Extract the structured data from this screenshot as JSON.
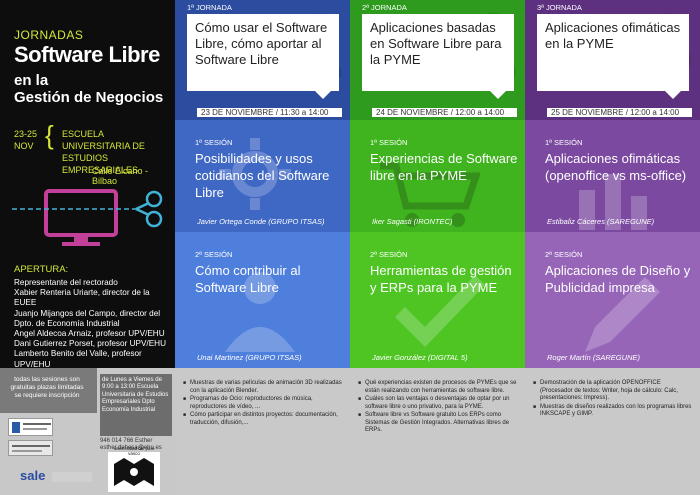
{
  "left": {
    "jornadas": "JORNADAS",
    "title_main": "Software Libre",
    "title_sub_line1": "en la",
    "title_sub_line2": "Gestión de Negocios",
    "dates_line1": "23-25",
    "dates_line2": "NOV",
    "school_line1": "ESCUELA UNIVERSITARIA DE",
    "school_line2": "ESTUDIOS EMPRESARIALES",
    "address": "Calle Elcano - Bilbao",
    "apertura_label": "APERTURA:",
    "speakers": [
      "Representante del rectorado",
      "Xabier Renteria Uriarte, director de la EUEE",
      "Juanjo Mijangos del Campo, director del Dpto. de Economía Industrial",
      "Angel Aldecoa Arnaiz, profesor UPV/EHU",
      "Dani Gutierrez Porset, profesor UPV/EHU",
      "Lamberto Benito del Valle, profesor UPV/EHU"
    ],
    "seats_note": "todas las sesiones son gratuitas plazas limitadas se requiere inscripción",
    "schedule_info": "de Lunes a Viernes de 9:00 a 13:00 Escuela Universitaria de Estudios Empresariales Dpto Economía Industrial",
    "phone_info": "946 014 766 Esther esther.dehesa@ehu.es"
  },
  "columns": [
    {
      "day_label": "1ª JORNADA",
      "digit": "1",
      "day_title": "Cómo usar el Software Libre, cómo aportar al Software Libre",
      "when": "23 DE NOVIEMBRE / 11:30 a 14:00",
      "session1_label": "1ª SESIÓN",
      "session1_title": "Posibilidades y usos cotidianos del Software Libre",
      "session1_speaker": "Javier Ortega Conde (GRUPO ITSAS)",
      "session2_label": "2ª SESIÓN",
      "session2_title": "Cómo contribuir al Software Libre",
      "session2_speaker": "Unai Martinez (GRUPO ITSAS)",
      "bullets": [
        "Muestras de varias películas de animación 3D realizadas con la aplicación Blender.",
        "Programas de Ocio: reproductores de música, reproductores de vídeo, ...",
        "Cómo participar en distintos proyectos: documentación, traducción, difusión,..."
      ]
    },
    {
      "day_label": "2ª JORNADA",
      "digit": "2",
      "day_title": "Aplicaciones basadas en Software Libre para la PYME",
      "when": "24 DE NOVIEMBRE / 12:00 a 14:00",
      "session1_label": "1ª SESIÓN",
      "session1_title": "Experiencias de Software libre en la PYME",
      "session1_speaker": "Iker Sagasti (IRONTEC)",
      "session2_label": "2ª SESIÓN",
      "session2_title": "Herramientas de gestión y ERPs para la PYME",
      "session2_speaker": "Javier González  (DIGITAL 5)",
      "bullets": [
        "Qué experiencias existen de procesos de PYMEs que se están realizando con herramientas de software libre.",
        "Cuáles son las ventajas o desventajas de optar por un software libre o uno privativo, para la PYME.",
        "Software libre vs Software gratuito Los ERPs como Sistemas de Gestión Integrados. Alternativas libres de ERPs."
      ]
    },
    {
      "day_label": "3ª JORNADA",
      "digit": "3",
      "day_title": "Aplicaciones ofimáticas en la PYME",
      "when": "25 DE NOVIEMBRE / 12:00 a 14:00",
      "session1_label": "1ª SESIÓN",
      "session1_title": "Aplicaciones ofimáticas (openoffice vs ms-office)",
      "session1_speaker": "Estibaliz Cáceres (SAREGUNE)",
      "session2_label": "2ª SESIÓN",
      "session2_title": "Aplicaciones de Diseño y Publicidad impresa",
      "session2_speaker": "Roger Martín (SAREGUNE)",
      "bullets": [
        "Demostración de la aplicación OPENOFFICE (Procesador de textos: Writer, hoja de cálculo: Calc, presentaciones: Impress).",
        "Muestras de diseños realizados con los programas libres INKSCAPE y GIMP."
      ]
    }
  ],
  "logos": {
    "sale": "sale",
    "ehu": "universidad del país vasco"
  },
  "colors": {
    "accent_yellow": "#d4e63a",
    "col1": "#2b4c9f",
    "col2": "#2e9b1f",
    "col3": "#5e3180"
  }
}
